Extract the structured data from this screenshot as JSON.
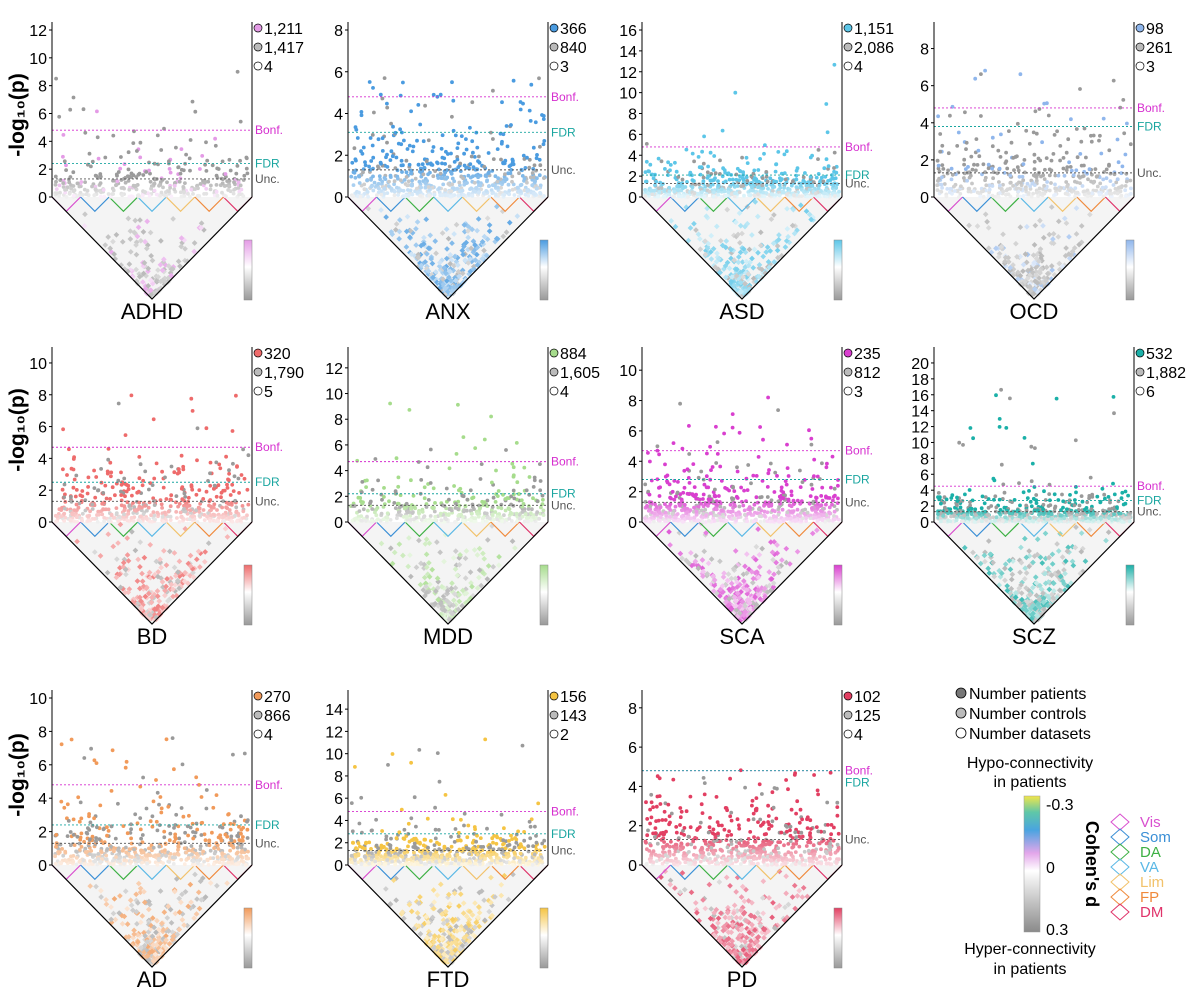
{
  "ylabel": "-log₁₀(p)",
  "threshold_labels": {
    "bonf": "Bonf.",
    "fdr": "FDR",
    "unc": "Unc."
  },
  "colors": {
    "bonf": "#d62ecf",
    "fdr": "#1aa6a0",
    "unc": "#555555",
    "patients_dot": "#777777",
    "controls_dot": "#bbbbbb",
    "triangle_base": "#d8d8d8",
    "axis": "#000000"
  },
  "networks": [
    {
      "name": "Vis",
      "color": "#d94fcf"
    },
    {
      "name": "Som",
      "color": "#3a8fd6"
    },
    {
      "name": "DA",
      "color": "#3cb043"
    },
    {
      "name": "VA",
      "color": "#5ab8e6"
    },
    {
      "name": "Lim",
      "color": "#f2c26b"
    },
    {
      "name": "FP",
      "color": "#f08a3c"
    },
    {
      "name": "DM",
      "color": "#e0336a"
    }
  ],
  "legend": {
    "patients": "Number patients",
    "controls": "Number controls",
    "datasets": "Number datasets",
    "hypo": "Hypo-connectivity",
    "hypo_sub": "in patients",
    "hyper": "Hyper-connectivity",
    "hyper_sub": "in patients",
    "cbar_label": "Cohen's d",
    "cbar_ticks": [
      "-0.3",
      "0",
      "0.3"
    ]
  },
  "chart_data": [
    {
      "type": "scatter",
      "title": "ADHD",
      "color": "#e49be6",
      "ylim": [
        0,
        12
      ],
      "yticks": [
        "0",
        "2",
        "4",
        "6",
        "8",
        "10",
        "12"
      ],
      "n_patients": "1,211",
      "n_controls": "1,417",
      "n_datasets": "4",
      "thresholds": {
        "bonf": 4.8,
        "fdr": 2.4,
        "unc": 1.3
      },
      "max": 9.2,
      "frac_color": 0.25,
      "density": 0.35
    },
    {
      "type": "scatter",
      "title": "ANX",
      "color": "#4a9be0",
      "ylim": [
        0,
        8
      ],
      "yticks": [
        "0",
        "2",
        "4",
        "6",
        "8"
      ],
      "n_patients": "366",
      "n_controls": "840",
      "n_datasets": "3",
      "thresholds": {
        "bonf": 4.8,
        "fdr": 3.1,
        "unc": 1.3
      },
      "max": 6.0,
      "frac_color": 0.75,
      "density": 0.9
    },
    {
      "type": "scatter",
      "title": "ASD",
      "color": "#5cc6e8",
      "ylim": [
        0,
        16
      ],
      "yticks": [
        "0",
        "2",
        "4",
        "6",
        "8",
        "10",
        "12",
        "14",
        "16"
      ],
      "n_patients": "1,151",
      "n_controls": "2,086",
      "n_datasets": "4",
      "thresholds": {
        "bonf": 4.8,
        "fdr": 2.1,
        "unc": 1.3
      },
      "max": 13.6,
      "frac_color": 0.8,
      "density": 0.85
    },
    {
      "type": "scatter",
      "title": "OCD",
      "color": "#8fb6ec",
      "ylim": [
        0,
        9
      ],
      "yticks": [
        "0",
        "2",
        "4",
        "6",
        "8"
      ],
      "n_patients": "98",
      "n_controls": "261",
      "n_datasets": "3",
      "thresholds": {
        "bonf": 4.8,
        "fdr": 3.8,
        "unc": 1.3
      },
      "max": 7.0,
      "frac_color": 0.25,
      "density": 0.5
    },
    {
      "type": "scatter",
      "title": "BD",
      "color": "#ee6b6b",
      "ylim": [
        0,
        10.5
      ],
      "yticks": [
        "0",
        "2",
        "4",
        "6",
        "8",
        "10"
      ],
      "n_patients": "320",
      "n_controls": "1,790",
      "n_datasets": "5",
      "thresholds": {
        "bonf": 4.7,
        "fdr": 2.5,
        "unc": 1.3
      },
      "max": 8.0,
      "frac_color": 0.75,
      "density": 0.65
    },
    {
      "type": "scatter",
      "title": "MDD",
      "color": "#a6dc8c",
      "ylim": [
        0,
        13
      ],
      "yticks": [
        "0",
        "2",
        "4",
        "6",
        "8",
        "10",
        "12"
      ],
      "n_patients": "884",
      "n_controls": "1,605",
      "n_datasets": "4",
      "thresholds": {
        "bonf": 4.7,
        "fdr": 2.2,
        "unc": 1.3
      },
      "max": 10.0,
      "frac_color": 0.6,
      "density": 0.5
    },
    {
      "type": "scatter",
      "title": "SCA",
      "color": "#d93fcf",
      "ylim": [
        0,
        11
      ],
      "yticks": [
        "0",
        "2",
        "4",
        "6",
        "8",
        "10"
      ],
      "n_patients": "235",
      "n_controls": "812",
      "n_datasets": "3",
      "thresholds": {
        "bonf": 4.7,
        "fdr": 2.8,
        "unc": 1.3
      },
      "max": 8.5,
      "frac_color": 0.75,
      "density": 0.9
    },
    {
      "type": "scatter",
      "title": "SCZ",
      "color": "#1bb0a8",
      "ylim": [
        0,
        21
      ],
      "yticks": [
        "0",
        "2",
        "4",
        "6",
        "8",
        "10",
        "12",
        "14",
        "16",
        "18",
        "20"
      ],
      "n_patients": "532",
      "n_controls": "1,882",
      "n_datasets": "6",
      "thresholds": {
        "bonf": 4.5,
        "fdr": 2.7,
        "unc": 1.3
      },
      "max": 16.8,
      "frac_color": 0.55,
      "density": 1.0
    },
    {
      "type": "scatter",
      "title": "AD",
      "color": "#f19a5a",
      "ylim": [
        0,
        10
      ],
      "yticks": [
        "0",
        "2",
        "4",
        "6",
        "8",
        "10"
      ],
      "n_patients": "270",
      "n_controls": "866",
      "n_datasets": "4",
      "thresholds": {
        "bonf": 4.8,
        "fdr": 2.4,
        "unc": 1.3
      },
      "max": 7.6,
      "frac_color": 0.6,
      "density": 0.8
    },
    {
      "type": "scatter",
      "title": "FTD",
      "color": "#f5c443",
      "ylim": [
        0,
        15
      ],
      "yticks": [
        "0",
        "2",
        "4",
        "6",
        "8",
        "10",
        "12",
        "14"
      ],
      "n_patients": "156",
      "n_controls": "143",
      "n_datasets": "2",
      "thresholds": {
        "bonf": 4.8,
        "fdr": 2.8,
        "unc": 1.3
      },
      "max": 11.5,
      "frac_color": 0.7,
      "density": 0.95
    },
    {
      "type": "scatter",
      "title": "PD",
      "color": "#e23f62",
      "ylim": [
        0,
        8.5
      ],
      "yticks": [
        "0",
        "2",
        "4",
        "6",
        "8"
      ],
      "n_patients": "102",
      "n_controls": "125",
      "n_datasets": "4",
      "thresholds": {
        "bonf": 4.8,
        "fdr": 4.8,
        "unc": 1.3
      },
      "max": 5.0,
      "frac_color": 0.8,
      "density": 0.9
    }
  ]
}
